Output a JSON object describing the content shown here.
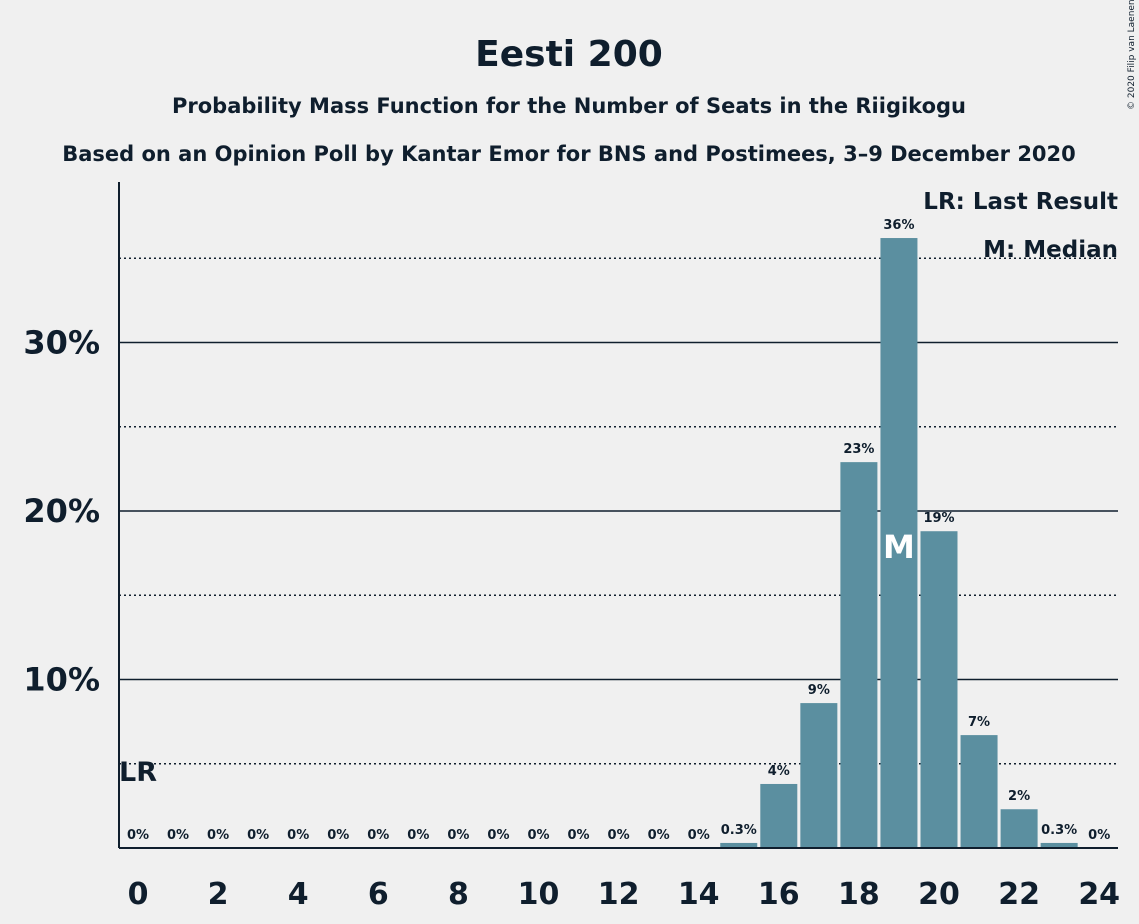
{
  "chart_data": {
    "type": "bar",
    "title": "Eesti 200",
    "subtitle": "Probability Mass Function for the Number of Seats in the Riigikogu",
    "subtitle2": "Based on an Opinion Poll by Kantar Emor for BNS and Postimees, 3–9 December 2020",
    "credit": "© 2020 Filip van Laenen",
    "legend": [
      "LR: Last Result",
      "M: Median"
    ],
    "categories": [
      0,
      1,
      2,
      3,
      4,
      5,
      6,
      7,
      8,
      9,
      10,
      11,
      12,
      13,
      14,
      15,
      16,
      17,
      18,
      19,
      20,
      21,
      22,
      23,
      24
    ],
    "values": [
      0,
      0,
      0,
      0,
      0,
      0,
      0,
      0,
      0,
      0,
      0,
      0,
      0,
      0,
      0,
      0.3,
      3.8,
      8.6,
      22.9,
      36.2,
      18.8,
      6.7,
      2.3,
      0.3,
      0
    ],
    "data_labels": [
      "0%",
      "0%",
      "0%",
      "0%",
      "0%",
      "0%",
      "0%",
      "0%",
      "0%",
      "0%",
      "0%",
      "0%",
      "0%",
      "0%",
      "0%",
      "0.3%",
      "4%",
      "9%",
      "23%",
      "36%",
      "19%",
      "7%",
      "2%",
      "0.3%",
      "0%"
    ],
    "x_tick_labels": [
      "0",
      "2",
      "4",
      "6",
      "8",
      "10",
      "12",
      "14",
      "16",
      "18",
      "20",
      "22",
      "24"
    ],
    "x_tick_values": [
      0,
      2,
      4,
      6,
      8,
      10,
      12,
      14,
      16,
      18,
      20,
      22,
      24
    ],
    "y_tick_labels": [
      "10%",
      "20%",
      "30%"
    ],
    "y_tick_values": [
      10,
      20,
      30
    ],
    "y_minor_gridlines": [
      5,
      15,
      25,
      35
    ],
    "ylim": [
      0,
      39.5
    ],
    "last_result_seat": 0,
    "last_result_marker": "LR",
    "median_seat": 19,
    "median_marker": "M",
    "bar_color": "#5b8fa0"
  }
}
